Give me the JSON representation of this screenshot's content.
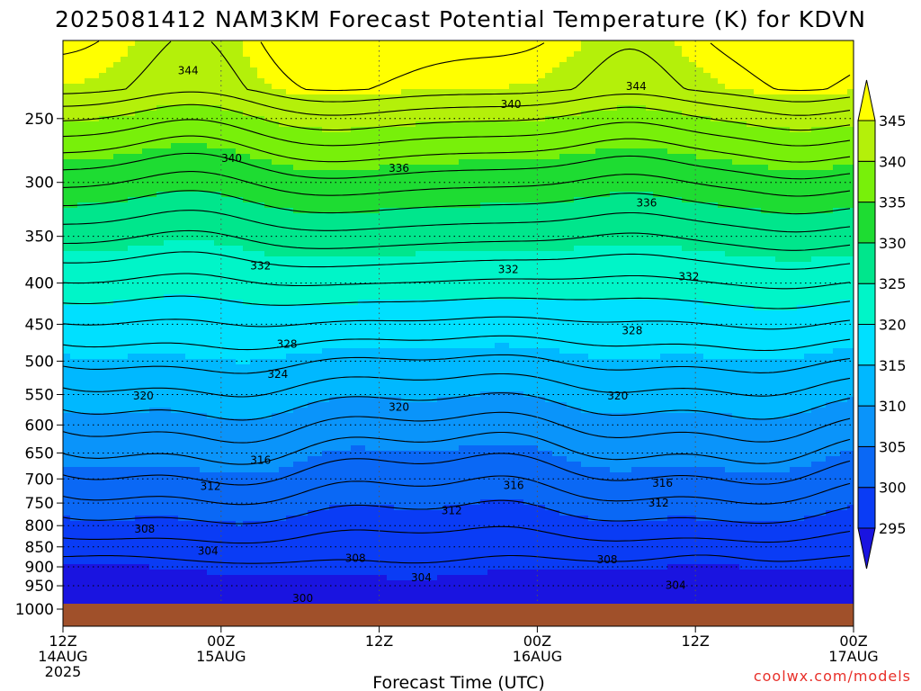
{
  "title": "2025081412 NAM3KM Forecast Potential Temperature (K) for KDVN",
  "credit": "coolwx.com/models",
  "chart_data": {
    "type": "heatmap",
    "title": "2025081412 NAM3KM Forecast Potential Temperature (K) for KDVN",
    "xlabel": "Forecast Time (UTC)",
    "ylabel": "",
    "x_ticks": [
      {
        "hour": 0,
        "l1": "12Z",
        "l2": "14AUG",
        "l3": "2025"
      },
      {
        "hour": 12,
        "l1": "00Z",
        "l2": "15AUG",
        "l3": ""
      },
      {
        "hour": 24,
        "l1": "12Z",
        "l2": "",
        "l3": ""
      },
      {
        "hour": 36,
        "l1": "00Z",
        "l2": "16AUG",
        "l3": ""
      },
      {
        "hour": 48,
        "l1": "12Z",
        "l2": "",
        "l3": ""
      },
      {
        "hour": 60,
        "l1": "00Z",
        "l2": "17AUG",
        "l3": ""
      }
    ],
    "xlim": [
      0,
      60
    ],
    "y_ticks": [
      250,
      300,
      350,
      400,
      450,
      500,
      550,
      600,
      650,
      700,
      750,
      800,
      850,
      900,
      950,
      1000
    ],
    "ylim": [
      200,
      1000
    ],
    "y_scale": "log",
    "colorbar": {
      "levels": [
        295,
        300,
        305,
        310,
        315,
        320,
        325,
        330,
        335,
        340,
        345
      ],
      "colors": [
        "#1a14e0",
        "#0a3cf5",
        "#0a68f5",
        "#0a94fa",
        "#00b8ff",
        "#00e0ff",
        "#00f5c8",
        "#00e68c",
        "#1edc32",
        "#78f00a",
        "#b4f00a",
        "#ffff00"
      ]
    },
    "contour_labels": [
      {
        "hour": 9.5,
        "p": 218,
        "label": "344"
      },
      {
        "hour": 34,
        "p": 240,
        "label": "340"
      },
      {
        "hour": 43.5,
        "p": 228,
        "label": "344"
      },
      {
        "hour": 12.8,
        "p": 280,
        "label": "340"
      },
      {
        "hour": 25.5,
        "p": 288,
        "label": "336"
      },
      {
        "hour": 44.3,
        "p": 318,
        "label": "336"
      },
      {
        "hour": 15,
        "p": 381,
        "label": "332"
      },
      {
        "hour": 33.8,
        "p": 385,
        "label": "332"
      },
      {
        "hour": 47.5,
        "p": 393,
        "label": "332"
      },
      {
        "hour": 17,
        "p": 476,
        "label": "328"
      },
      {
        "hour": 43.2,
        "p": 458,
        "label": "328"
      },
      {
        "hour": 16.3,
        "p": 519,
        "label": "324"
      },
      {
        "hour": 6.1,
        "p": 552,
        "label": "320"
      },
      {
        "hour": 25.5,
        "p": 570,
        "label": "320"
      },
      {
        "hour": 42.1,
        "p": 552,
        "label": "320"
      },
      {
        "hour": 15,
        "p": 664,
        "label": "316"
      },
      {
        "hour": 34.2,
        "p": 713,
        "label": "316"
      },
      {
        "hour": 45.5,
        "p": 709,
        "label": "316"
      },
      {
        "hour": 11.2,
        "p": 715,
        "label": "312"
      },
      {
        "hour": 29.5,
        "p": 766,
        "label": "312"
      },
      {
        "hour": 45.2,
        "p": 750,
        "label": "312"
      },
      {
        "hour": 6.2,
        "p": 808,
        "label": "308"
      },
      {
        "hour": 22.2,
        "p": 878,
        "label": "308"
      },
      {
        "hour": 41.3,
        "p": 882,
        "label": "308"
      },
      {
        "hour": 11,
        "p": 860,
        "label": "304"
      },
      {
        "hour": 27.2,
        "p": 928,
        "label": "304"
      },
      {
        "hour": 46.5,
        "p": 949,
        "label": "304"
      },
      {
        "hour": 18.2,
        "p": 985,
        "label": "300"
      }
    ]
  }
}
